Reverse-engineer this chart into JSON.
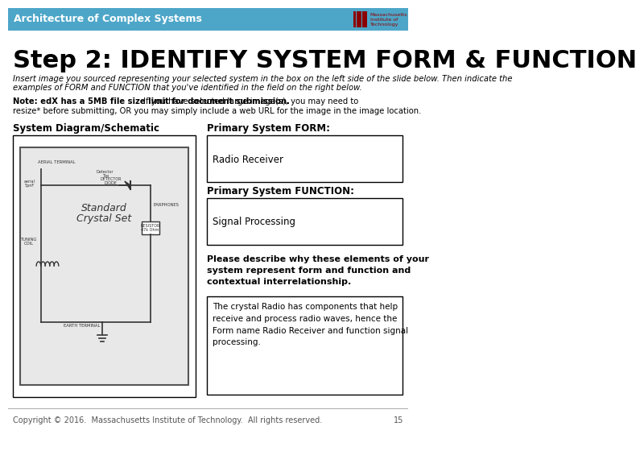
{
  "header_text": "Architecture of Complex Systems",
  "header_bg": "#4da6c8",
  "header_text_color": "#ffffff",
  "title": "Step 2: IDENTIFY SYSTEM FORM & FUNCTION",
  "title_fontsize": 22,
  "italic_text1": "Insert image you sourced representing your selected system in the box on the left side of the slide below. Then indicate the",
  "italic_text2": "examples of FORM and FUNCTION that you've identified in the field on the right below.",
  "note_bold": "Note: edX has a 5MB file size limit for document submission.",
  "note_normal": " If you have selected large image(s), you may need to",
  "note_line2": "resize* before submitting, OR you may simply include a web URL for the image in the image location.",
  "col1_label": "System Diagram/Schematic",
  "col2_label": "Primary System FORM:",
  "form_box_text": "Radio Receiver",
  "function_label": "Primary System FUNCTION:",
  "function_box_text": "Signal Processing",
  "describe_label": "Please describe why these elements of your\nsystem represent form and function and\ncontextual interrelationship.",
  "describe_box_text": "The crystal Radio has components that help\nreceive and process radio waves, hence the\nForm name Radio Receiver and function signal\nprocessing.",
  "footer_text": "Copyright © 2016.  Massachusetts Institute of Technology.  All rights reserved.",
  "footer_page": "15",
  "bg_color": "#ffffff",
  "box_border_color": "#000000",
  "mit_logo_color": "#8b0000"
}
